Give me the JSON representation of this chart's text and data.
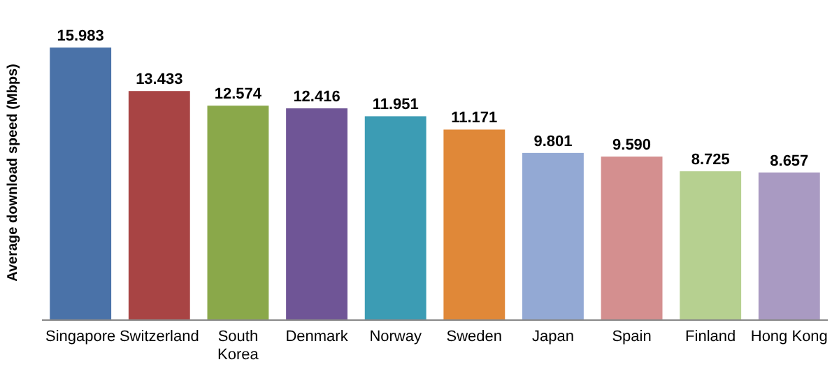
{
  "chart_data": {
    "type": "bar",
    "ylabel": "Average download speed (Mbps)",
    "categories": [
      "Singapore",
      "Switzerland",
      "South Korea",
      "Denmark",
      "Norway",
      "Sweden",
      "Japan",
      "Spain",
      "Finland",
      "Hong Kong"
    ],
    "values": [
      15.983,
      13.433,
      12.574,
      12.416,
      11.951,
      11.171,
      9.801,
      9.59,
      8.725,
      8.657
    ],
    "colors": [
      "#4a72a8",
      "#a84444",
      "#8aa84a",
      "#6f5596",
      "#3c9cb4",
      "#e08838",
      "#93a9d4",
      "#d48f8f",
      "#b6d090",
      "#a99ac2"
    ],
    "value_labels": [
      "15.983",
      "13.433",
      "12.574",
      "12.416",
      "11.951",
      "11.171",
      "9.801",
      "9.590",
      "8.725",
      "8.657"
    ]
  }
}
